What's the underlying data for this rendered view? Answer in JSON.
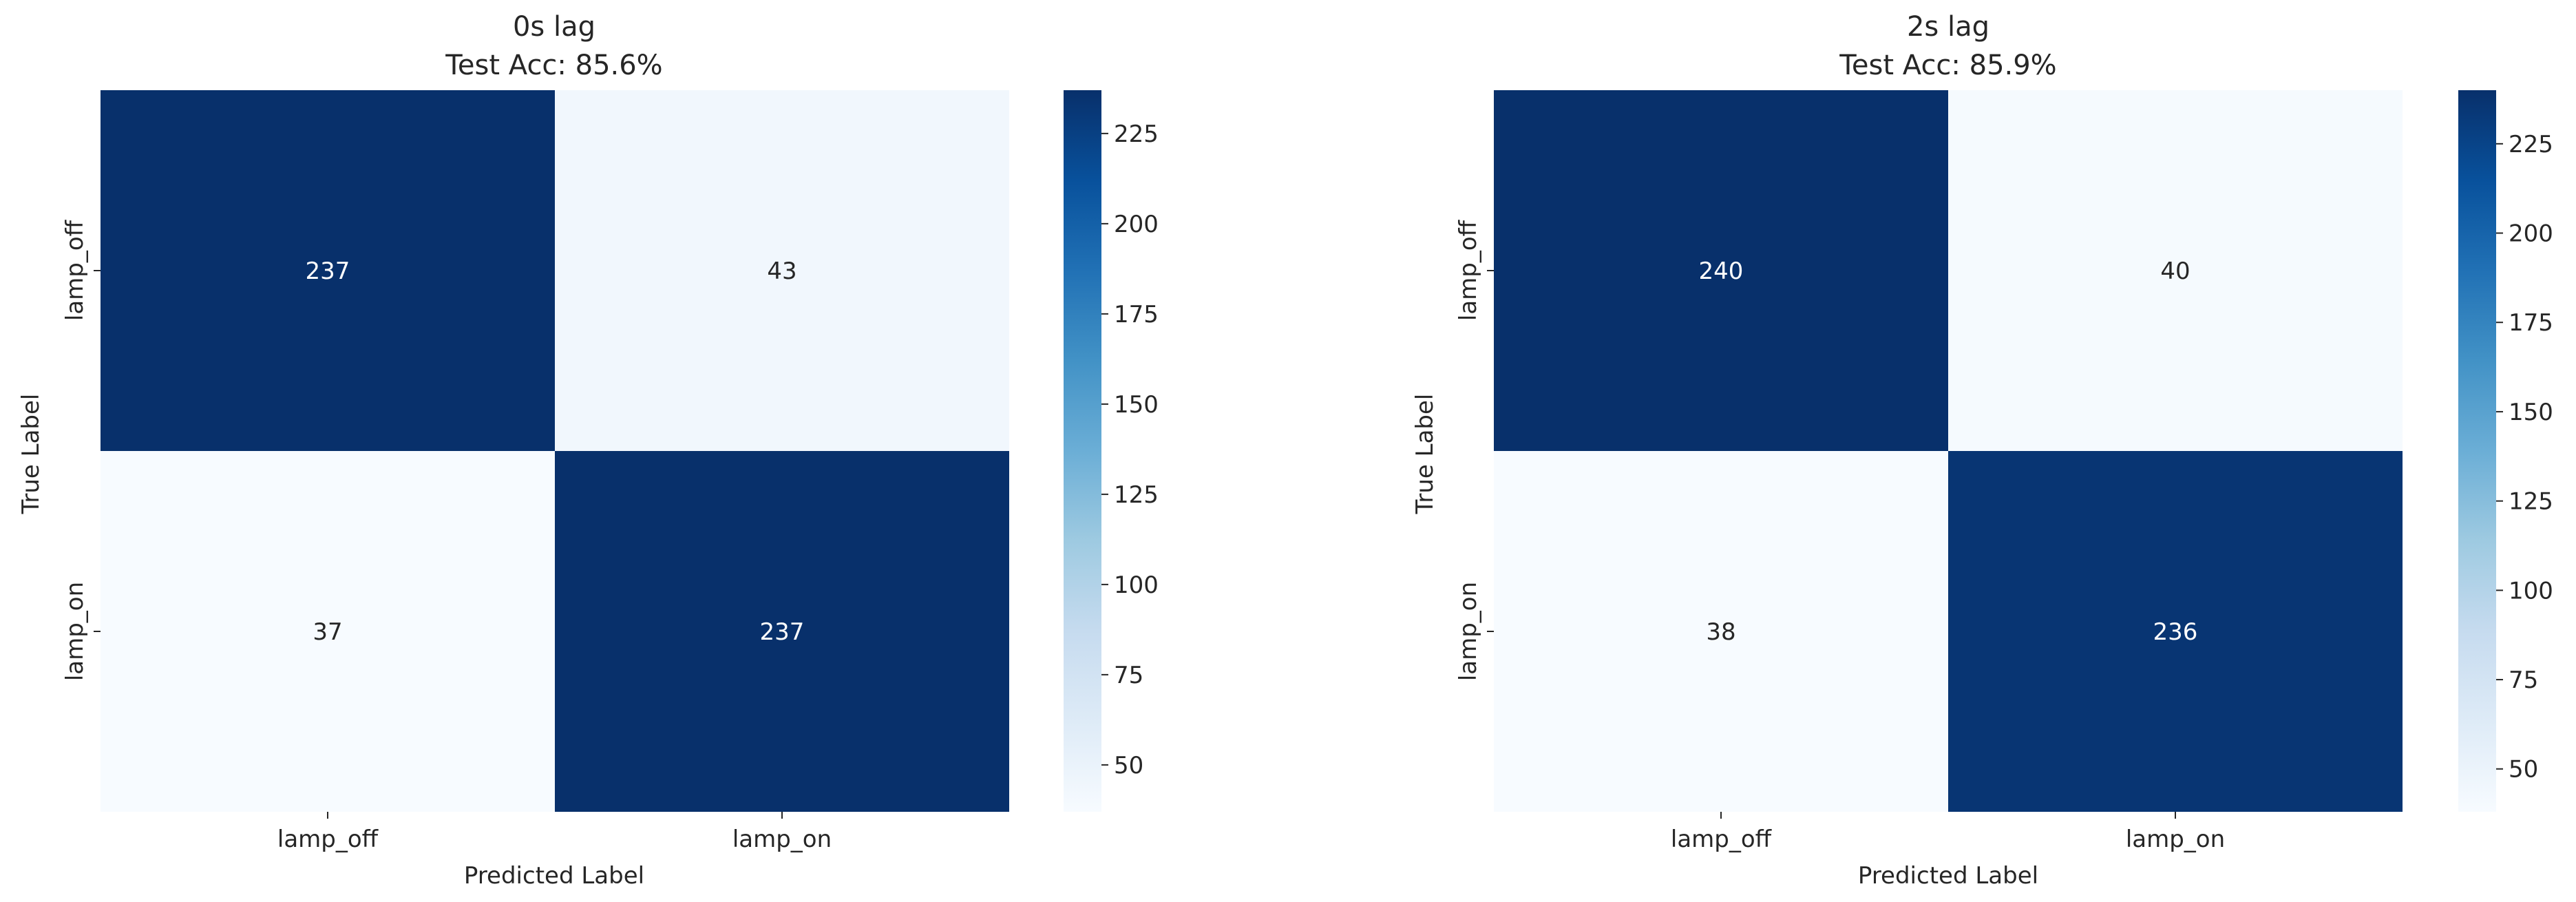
{
  "chart_data": [
    {
      "type": "heatmap",
      "title": "0s lag",
      "subtitle": "Test Acc: 85.6%",
      "xlabel": "Predicted Label",
      "ylabel": "True Label",
      "x_categories": [
        "lamp_off",
        "lamp_on"
      ],
      "y_categories": [
        "lamp_off",
        "lamp_on"
      ],
      "values": [
        [
          237,
          43
        ],
        [
          37,
          237
        ]
      ],
      "colormap": "Blues",
      "color_range": [
        37,
        237
      ],
      "colorbar_ticks": [
        50,
        75,
        100,
        125,
        150,
        175,
        200,
        225
      ]
    },
    {
      "type": "heatmap",
      "title": "2s lag",
      "subtitle": "Test Acc: 85.9%",
      "xlabel": "Predicted Label",
      "ylabel": "True Label",
      "x_categories": [
        "lamp_off",
        "lamp_on"
      ],
      "y_categories": [
        "lamp_off",
        "lamp_on"
      ],
      "values": [
        [
          240,
          40
        ],
        [
          38,
          236
        ]
      ],
      "colormap": "Blues",
      "color_range": [
        38,
        240
      ],
      "colorbar_ticks": [
        50,
        75,
        100,
        125,
        150,
        175,
        200,
        225
      ]
    }
  ]
}
